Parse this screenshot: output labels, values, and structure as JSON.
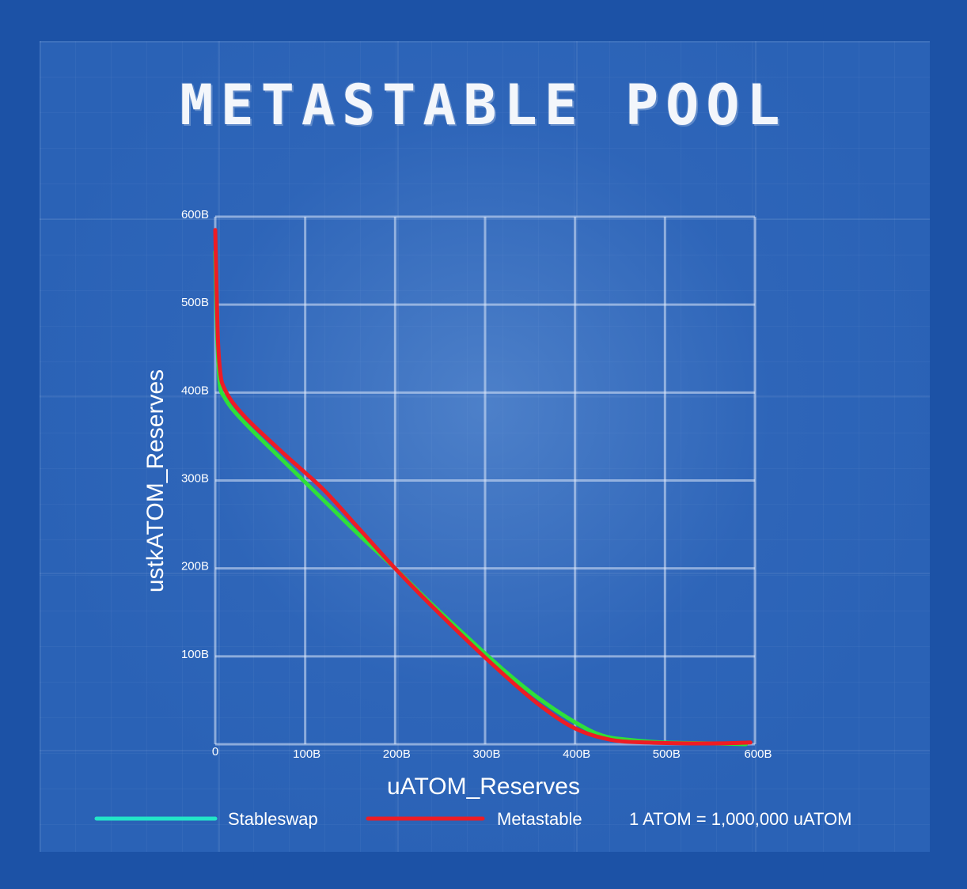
{
  "title": "METASTABLE POOL",
  "colors": {
    "background": "#1c52a6",
    "panel": "#2a62b6",
    "stableswap_legend": "#22e6c8",
    "stableswap_line": "#2ee03a",
    "metastable_line": "#ee1c24"
  },
  "chart_data": {
    "type": "line",
    "xlabel": "uATOM_Reserves",
    "ylabel": "ustkATOM_Reserves",
    "xlim": [
      0,
      600
    ],
    "ylim": [
      0,
      600
    ],
    "x_ticks": [
      "0",
      "100B",
      "200B",
      "300B",
      "400B",
      "500B",
      "600B"
    ],
    "y_ticks": [
      "100B",
      "200B",
      "300B",
      "400B",
      "500B",
      "600B"
    ],
    "grid": true,
    "legend_position": "bottom",
    "note": "1 ATOM = 1,000,000 uATOM",
    "series": [
      {
        "name": "Stableswap",
        "x": [
          0,
          2,
          5,
          10,
          20,
          40,
          80,
          120,
          160,
          200,
          240,
          280,
          320,
          360,
          400,
          430,
          460,
          500,
          550,
          590
        ],
        "y": [
          560,
          470,
          410,
          395,
          380,
          358,
          318,
          278,
          238,
          200,
          160,
          122,
          85,
          52,
          25,
          10,
          5,
          2,
          1,
          0
        ]
      },
      {
        "name": "Metastable",
        "x": [
          0,
          1,
          3,
          6,
          10,
          20,
          40,
          80,
          120,
          160,
          200,
          240,
          280,
          320,
          360,
          400,
          440,
          480,
          520,
          560,
          595
        ],
        "y": [
          585,
          540,
          460,
          420,
          405,
          388,
          365,
          327,
          290,
          245,
          200,
          158,
          118,
          80,
          45,
          18,
          5,
          2,
          1,
          1,
          2
        ]
      }
    ]
  }
}
